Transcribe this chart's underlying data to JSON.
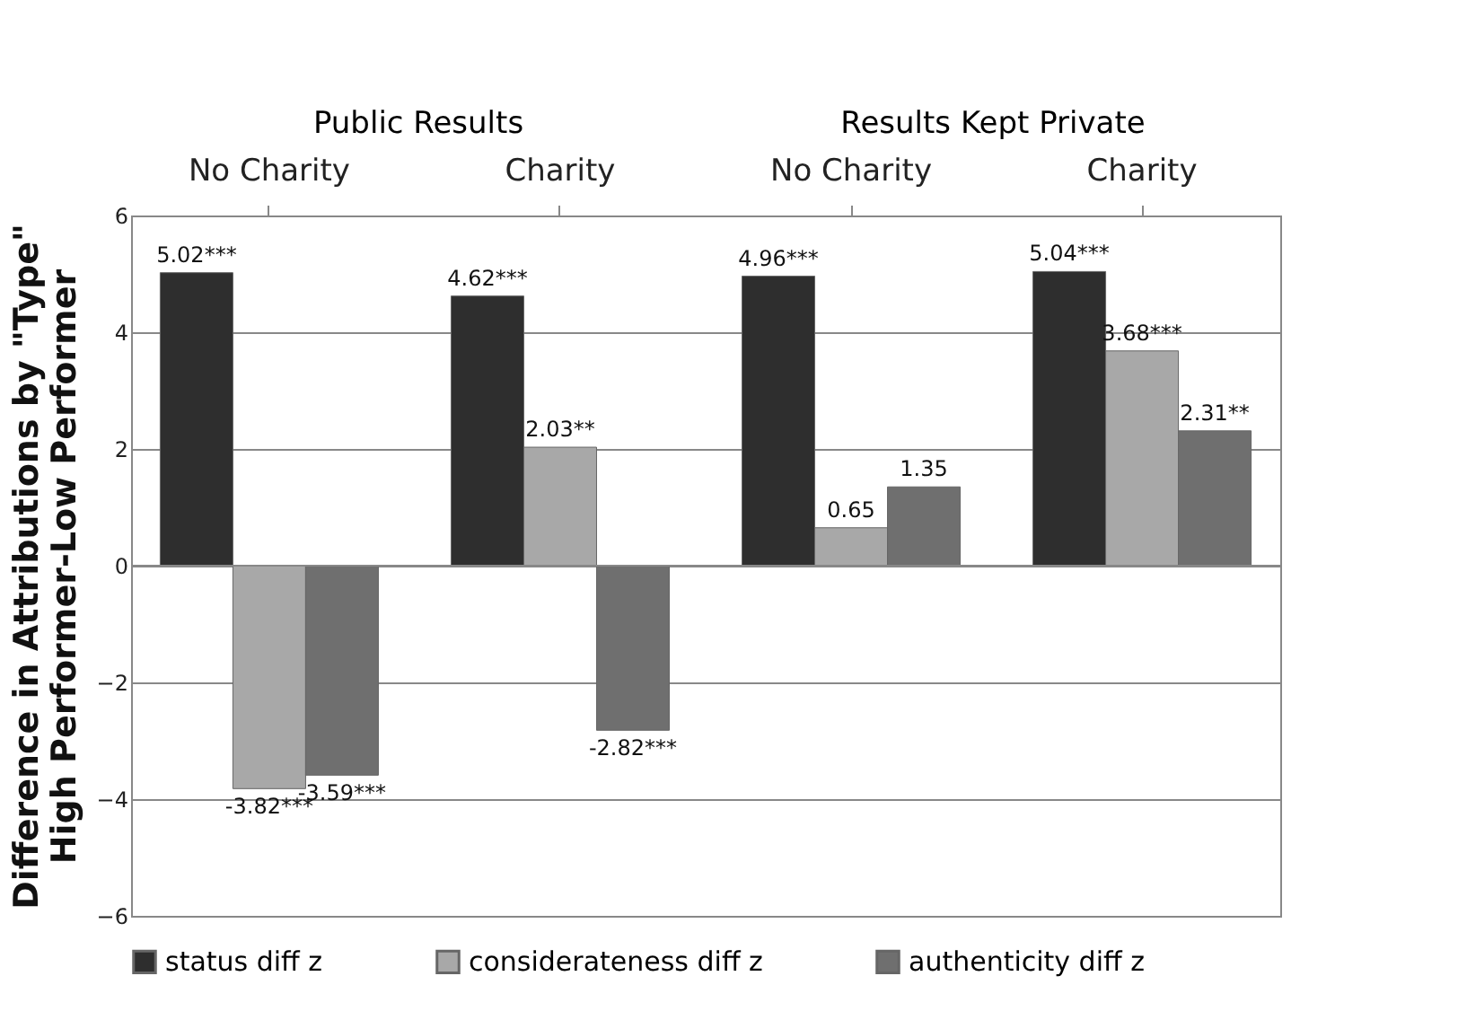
{
  "chart_data": {
    "type": "bar",
    "categories": [
      "No Charity",
      "Charity",
      "No Charity",
      "Charity"
    ],
    "ylabel": "Difference in Attributions by \"Type\"\nHigh Performer-Low Performer",
    "annotations": [
      "Public Results",
      "Results Kept Private"
    ],
    "series": [
      {
        "name": "status diff z",
        "color": "#2e2e2e",
        "values": [
          5.02,
          4.62,
          4.96,
          5.04
        ],
        "value_labels": [
          "5.02***",
          "4.62***",
          "4.96***",
          "5.04***"
        ]
      },
      {
        "name": "considerateness diff z",
        "color": "#a8a8a8",
        "values": [
          -3.82,
          2.03,
          0.65,
          3.68
        ],
        "value_labels": [
          "-3.82***",
          "2.03**",
          "0.65",
          "3.68***"
        ]
      },
      {
        "name": "authenticity diff z",
        "color": "#6f6f6f",
        "values": [
          -3.59,
          -2.82,
          1.35,
          2.31
        ],
        "value_labels": [
          "-3.59***",
          "-2.82***",
          "1.35",
          "2.31**"
        ]
      }
    ],
    "ylim": [
      -6,
      6
    ],
    "yticks": [
      -6,
      -4,
      -2,
      0,
      2,
      4,
      6
    ],
    "grid": "y",
    "legend": "bottom"
  }
}
